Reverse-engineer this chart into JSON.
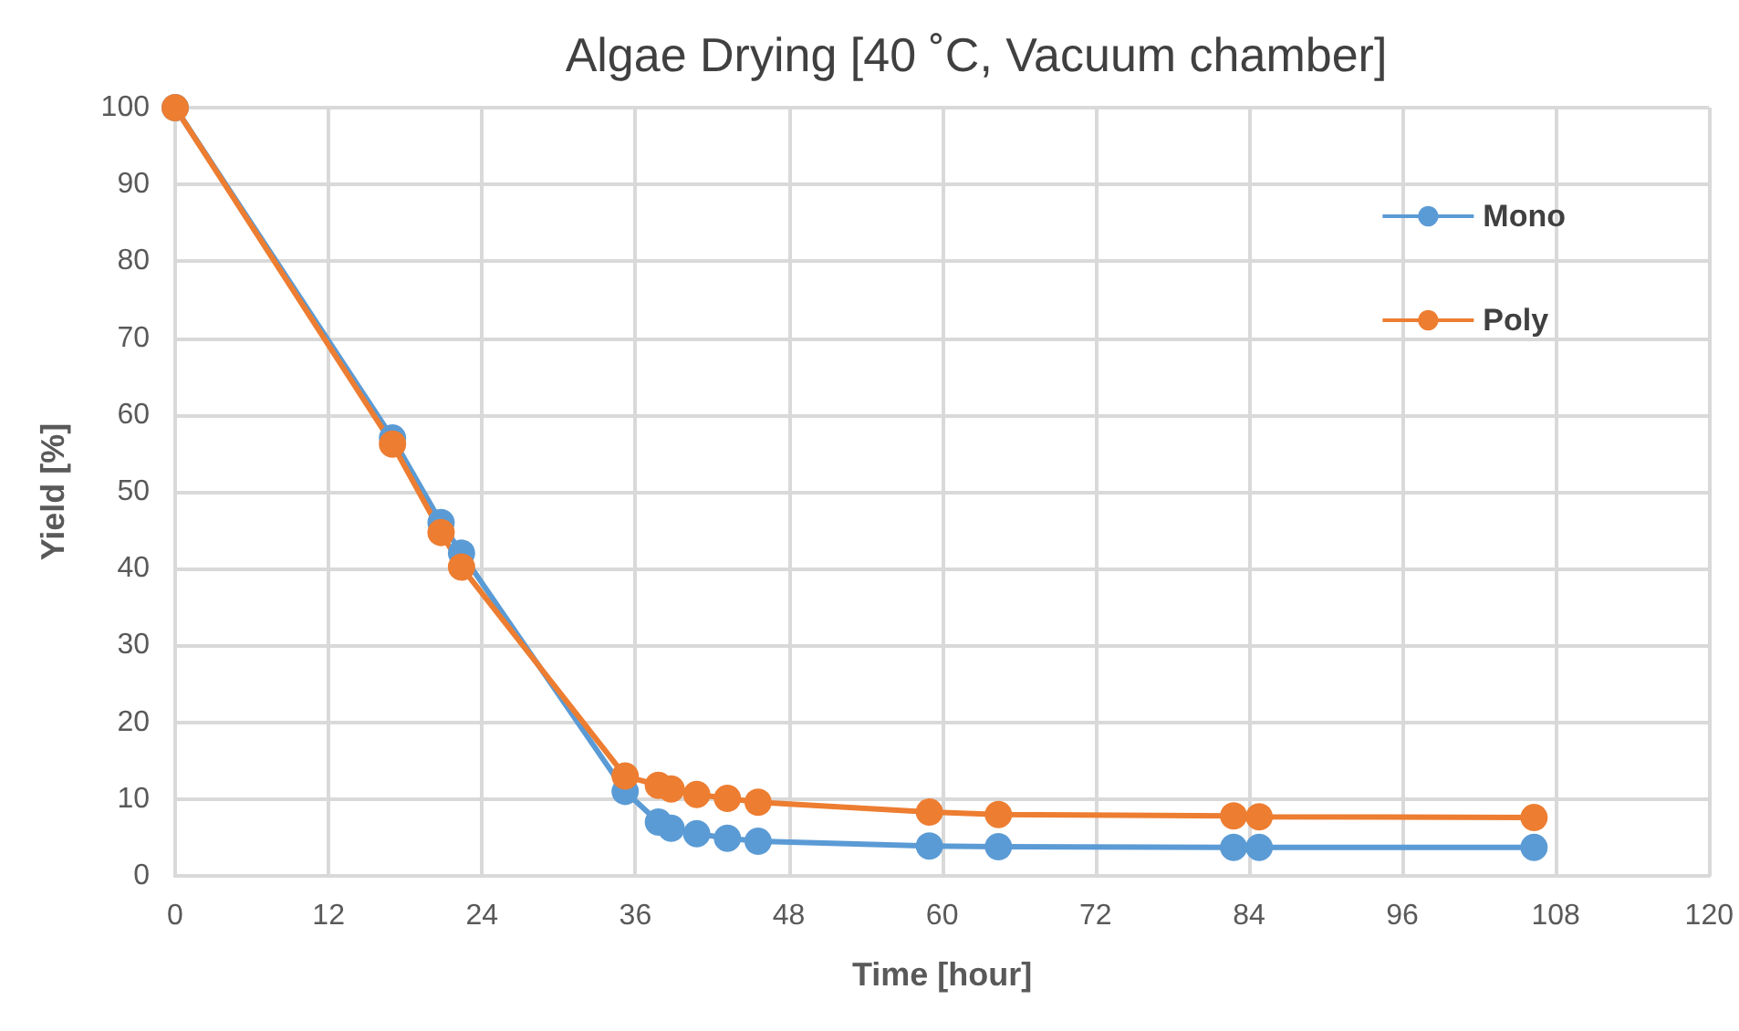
{
  "chart_data": {
    "type": "line",
    "title": "Algae Drying [40 ˚C, Vacuum chamber]",
    "xlabel": "Time [hour]",
    "ylabel": "Yield [%]",
    "x": [
      0,
      17,
      20.8,
      22.4,
      35.2,
      37.8,
      38.8,
      40.8,
      43.2,
      45.6,
      59,
      64.4,
      82.8,
      84.8,
      106.3
    ],
    "series": [
      {
        "name": "Mono",
        "color": "#5b9bd5",
        "values": [
          100,
          57,
          46,
          42,
          11,
          7,
          6.2,
          5.5,
          4.9,
          4.5,
          3.9,
          3.8,
          3.7,
          3.7,
          3.7
        ]
      },
      {
        "name": "Poly",
        "color": "#ed7d31",
        "values": [
          100,
          56.2,
          44.7,
          40.2,
          13,
          11.8,
          11.3,
          10.6,
          10.1,
          9.6,
          8.3,
          8,
          7.8,
          7.7,
          7.6
        ]
      }
    ],
    "xlim": [
      0,
      120
    ],
    "xticks": [
      0,
      12,
      24,
      36,
      48,
      60,
      72,
      84,
      96,
      108,
      120
    ],
    "ylim": [
      0,
      100
    ],
    "yticks": [
      0,
      10,
      20,
      30,
      40,
      50,
      60,
      70,
      80,
      90,
      100
    ],
    "grid": true,
    "legend": "top right",
    "marker": "circle",
    "line_style": "solid"
  }
}
